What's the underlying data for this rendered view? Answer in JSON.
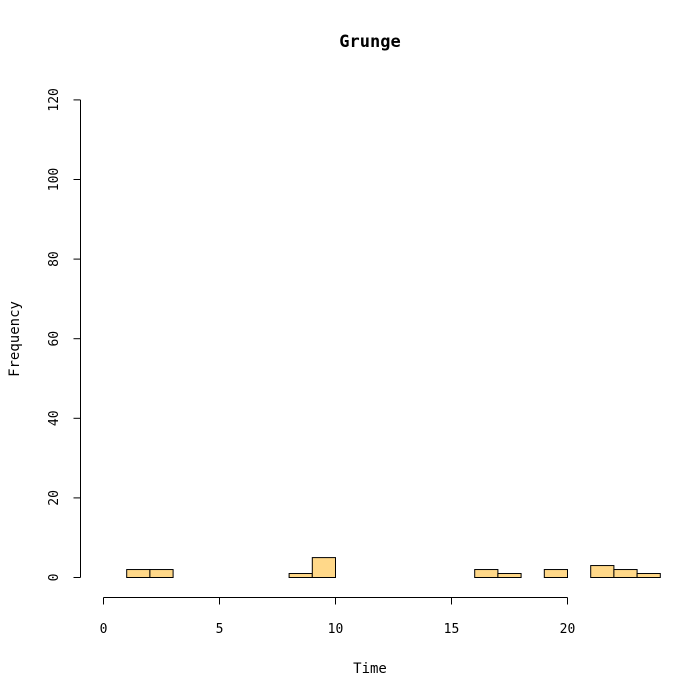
{
  "chart_data": {
    "type": "bar",
    "title": "Grunge",
    "xlabel": "Time",
    "ylabel": "Frequency",
    "xlim": [
      0,
      24
    ],
    "ylim": [
      0,
      120
    ],
    "x_axis_range": [
      0,
      20
    ],
    "x_ticks": [
      "0",
      "5",
      "10",
      "15",
      "20"
    ],
    "y_ticks": [
      "0",
      "20",
      "40",
      "60",
      "80",
      "100",
      "120"
    ],
    "bin_width": 1,
    "bins": [
      {
        "start": 0,
        "end": 1,
        "count": 0
      },
      {
        "start": 1,
        "end": 2,
        "count": 2
      },
      {
        "start": 2,
        "end": 3,
        "count": 2
      },
      {
        "start": 3,
        "end": 4,
        "count": 0
      },
      {
        "start": 4,
        "end": 5,
        "count": 0
      },
      {
        "start": 5,
        "end": 6,
        "count": 0
      },
      {
        "start": 6,
        "end": 7,
        "count": 0
      },
      {
        "start": 7,
        "end": 8,
        "count": 0
      },
      {
        "start": 8,
        "end": 9,
        "count": 1
      },
      {
        "start": 9,
        "end": 10,
        "count": 5
      },
      {
        "start": 10,
        "end": 11,
        "count": 0
      },
      {
        "start": 11,
        "end": 12,
        "count": 0
      },
      {
        "start": 12,
        "end": 13,
        "count": 0
      },
      {
        "start": 13,
        "end": 14,
        "count": 0
      },
      {
        "start": 14,
        "end": 15,
        "count": 0
      },
      {
        "start": 15,
        "end": 16,
        "count": 0
      },
      {
        "start": 16,
        "end": 17,
        "count": 2
      },
      {
        "start": 17,
        "end": 18,
        "count": 1
      },
      {
        "start": 18,
        "end": 19,
        "count": 0
      },
      {
        "start": 19,
        "end": 20,
        "count": 2
      },
      {
        "start": 20,
        "end": 21,
        "count": 0
      },
      {
        "start": 21,
        "end": 22,
        "count": 3
      },
      {
        "start": 22,
        "end": 23,
        "count": 2
      },
      {
        "start": 23,
        "end": 24,
        "count": 1
      }
    ],
    "bar_fill": "#ffd889",
    "bar_stroke": "#000000",
    "grid": false,
    "legend": "none"
  }
}
